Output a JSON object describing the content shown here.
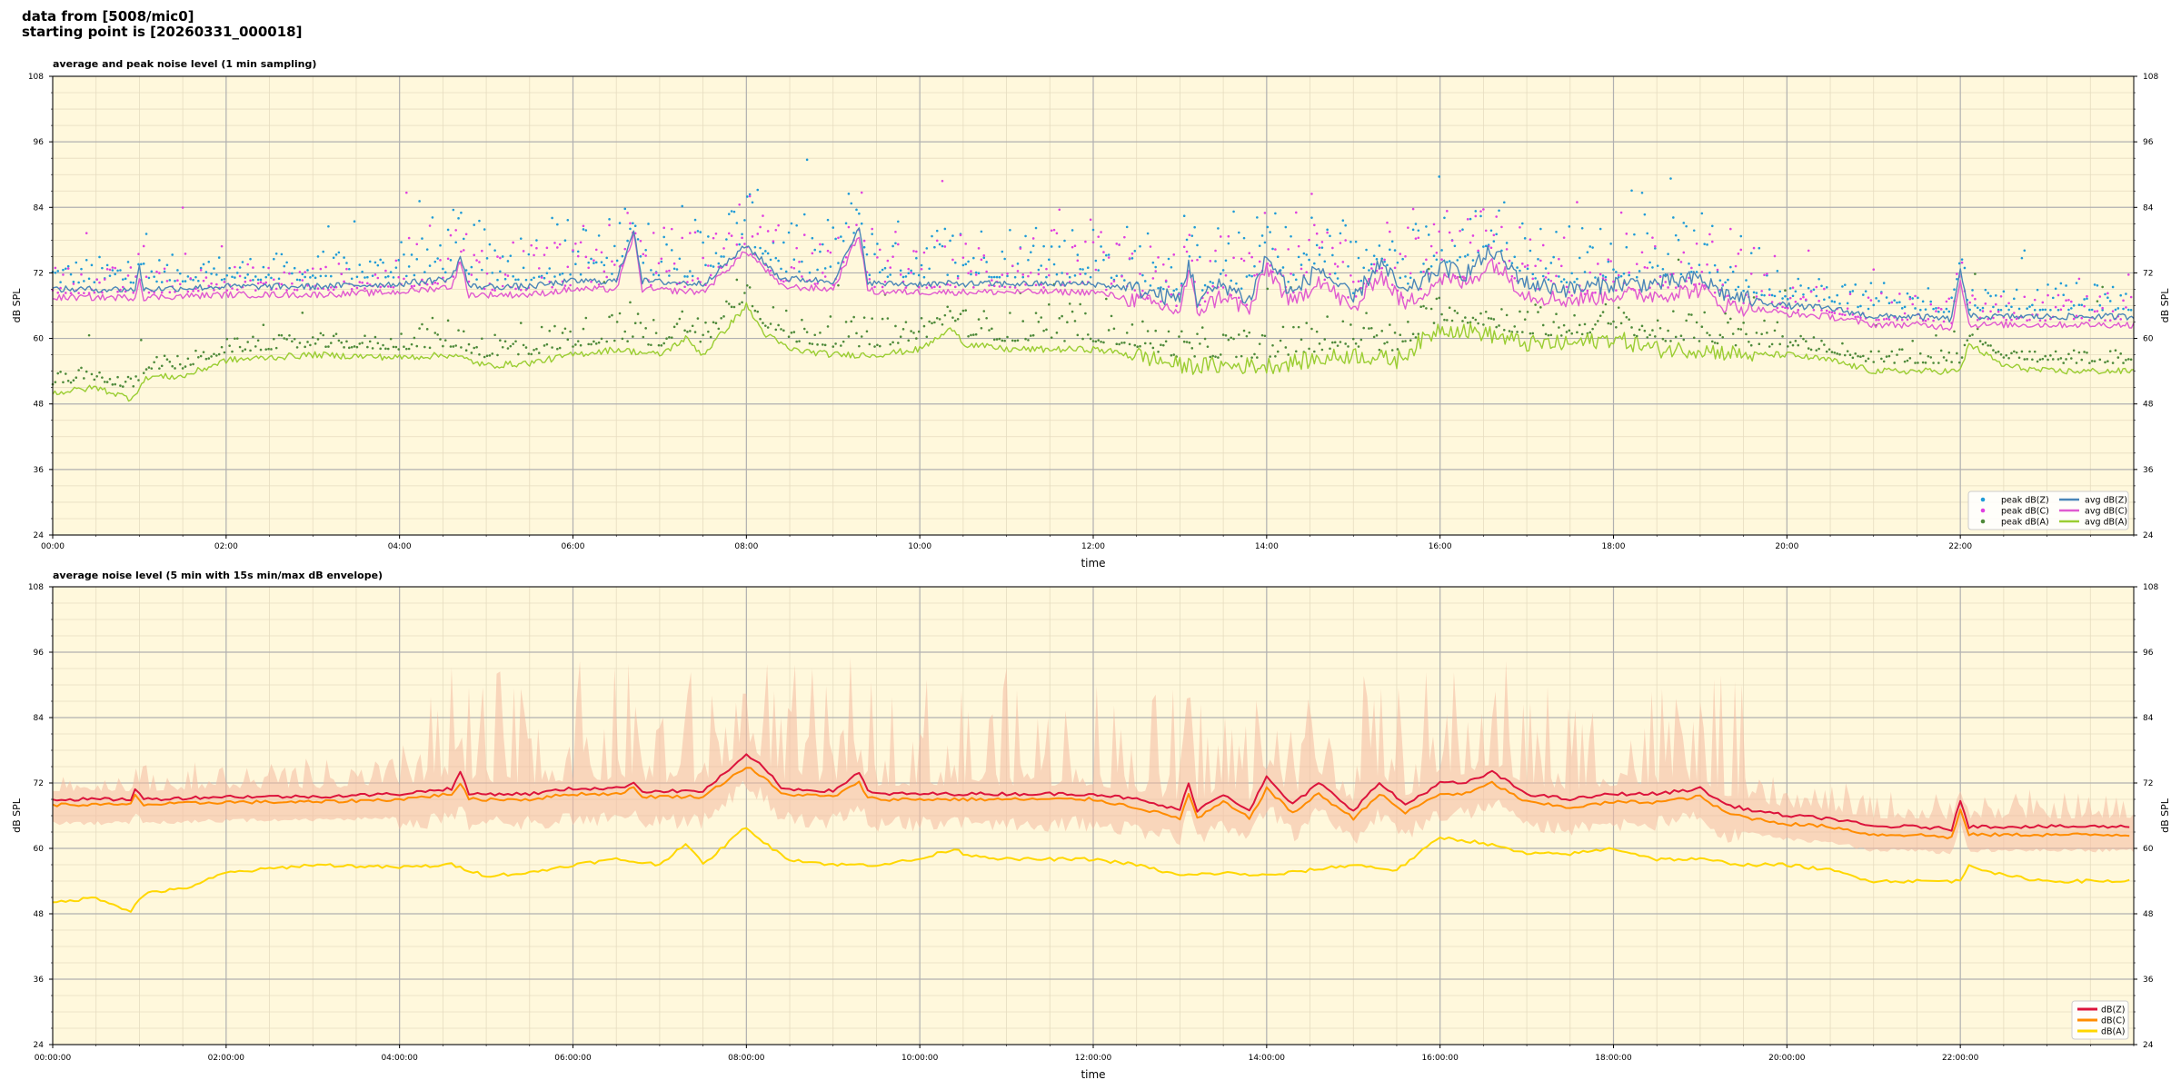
{
  "header": {
    "line1": "data from [5008/mic0]",
    "line2": "starting point is [20260331_000018]"
  },
  "colors": {
    "plot_bg": "#fff8dc",
    "major_grid": "#b0b0b0",
    "minor_grid": "#e6dcc0",
    "peak_z": "#1f9bd7",
    "peak_c": "#e040e0",
    "peak_a": "#4e8a3a",
    "avg_z": "#4a86b8",
    "avg_c": "#e05ad0",
    "avg_a": "#9acd32",
    "lvl_z": "#dc143c",
    "lvl_c": "#ff8c00",
    "lvl_a": "#ffd700",
    "envelope": "#f4b9a0"
  },
  "chart_data": [
    {
      "type": "line",
      "title": "average and peak noise level (1 min sampling)",
      "xlabel": "time",
      "ylabel": "dB SPL",
      "ylim": [
        24,
        108
      ],
      "yticks": [
        "24",
        "36",
        "48",
        "60",
        "72",
        "84",
        "96",
        "108"
      ],
      "xlim_hours": [
        0,
        24
      ],
      "xtick_labels": [
        "00:00",
        "02:00",
        "04:00",
        "06:00",
        "08:00",
        "10:00",
        "12:00",
        "14:00",
        "16:00",
        "18:00",
        "20:00",
        "22:00"
      ],
      "grid": true,
      "legend_position": "lower-right",
      "legend": [
        {
          "label": "peak dB(Z)",
          "kind": "point",
          "color_key": "peak_z"
        },
        {
          "label": "peak dB(C)",
          "kind": "point",
          "color_key": "peak_c"
        },
        {
          "label": "peak dB(A)",
          "kind": "point",
          "color_key": "peak_a"
        },
        {
          "label": "avg dB(Z)",
          "kind": "line",
          "color_key": "avg_z"
        },
        {
          "label": "avg dB(C)",
          "kind": "line",
          "color_key": "avg_c"
        },
        {
          "label": "avg dB(A)",
          "kind": "line",
          "color_key": "avg_a"
        }
      ],
      "series": [
        {
          "name": "avg dB(Z)",
          "kind": "line",
          "color_key": "avg_z",
          "x": [
            0,
            0.95,
            1.0,
            1.05,
            2,
            3,
            4,
            4.6,
            4.7,
            4.8,
            5.5,
            6,
            6.5,
            6.7,
            6.8,
            7.5,
            8.0,
            8.2,
            8.4,
            9,
            9.3,
            9.4,
            9.5,
            10,
            11,
            12,
            12.5,
            13.0,
            13.1,
            13.2,
            13.5,
            13.8,
            14.0,
            14.3,
            14.6,
            15.0,
            15.3,
            15.6,
            16.0,
            16.3,
            16.6,
            17.0,
            17.5,
            18.0,
            18.5,
            19.0,
            19.3,
            19.6,
            20.0,
            20.5,
            21.0,
            21.5,
            21.9,
            22.0,
            22.1,
            22.5,
            23.0,
            23.5,
            24
          ],
          "y": [
            69,
            69,
            73,
            69,
            69.5,
            69.5,
            70,
            71,
            75,
            69.5,
            69.5,
            70.5,
            70.5,
            80,
            70.5,
            70,
            77,
            74,
            71,
            70.5,
            80,
            70.5,
            70,
            70,
            70,
            70,
            69,
            67,
            74,
            67,
            70,
            67,
            75,
            68,
            73,
            67,
            74,
            68,
            73,
            72,
            76,
            70,
            69,
            70,
            70,
            71,
            68,
            67,
            66,
            65.5,
            64,
            64,
            63.5,
            73,
            64,
            64,
            64,
            64,
            64
          ]
        },
        {
          "name": "avg dB(C)",
          "kind": "line",
          "color_key": "avg_c",
          "x": [
            0,
            0.95,
            1.0,
            1.05,
            2,
            3,
            4,
            4.6,
            4.7,
            4.8,
            5.5,
            6,
            6.5,
            6.7,
            6.8,
            7.5,
            8.0,
            8.2,
            8.4,
            9,
            9.3,
            9.4,
            9.5,
            10,
            11,
            12,
            12.5,
            13.0,
            13.1,
            13.2,
            13.5,
            13.8,
            14.0,
            14.3,
            14.6,
            15.0,
            15.3,
            15.6,
            16.0,
            16.3,
            16.6,
            17.0,
            17.5,
            18.0,
            18.5,
            19.0,
            19.3,
            19.6,
            20.0,
            20.5,
            21.0,
            21.5,
            21.9,
            22.0,
            22.1,
            22.5,
            23.0,
            23.5,
            24
          ],
          "y": [
            67.5,
            67.5,
            71,
            67.5,
            68,
            68,
            68.5,
            69.5,
            74,
            68,
            68,
            69,
            69,
            79,
            69,
            68.5,
            76,
            73,
            69.5,
            69,
            79,
            69,
            68.5,
            68.5,
            68.5,
            68.5,
            67,
            65,
            72,
            65,
            68,
            65,
            73,
            66,
            71,
            65,
            72,
            66,
            71,
            70,
            74,
            68,
            67,
            68,
            68,
            69,
            66,
            65.5,
            64.5,
            64,
            62.5,
            62.5,
            62,
            71,
            62.5,
            62.5,
            62.5,
            62.5,
            62.5
          ]
        },
        {
          "name": "avg dB(A)",
          "kind": "line",
          "color_key": "avg_a",
          "x": [
            0,
            0.5,
            0.9,
            1.0,
            1.1,
            1.5,
            2,
            3,
            4,
            4.6,
            5,
            5.5,
            6,
            6.5,
            7,
            7.3,
            7.5,
            8.0,
            8.2,
            8.5,
            9,
            9.5,
            10,
            10.4,
            10.5,
            11,
            12,
            12.5,
            13,
            13.5,
            14,
            14.5,
            15,
            15.5,
            16,
            16.5,
            17,
            17.5,
            18,
            18.5,
            19,
            19.5,
            20,
            20.5,
            21,
            21.5,
            22,
            22.1,
            22.5,
            23,
            23.5,
            24
          ],
          "y": [
            50,
            51,
            49,
            51,
            53,
            53,
            56,
            57,
            56.5,
            57,
            55,
            55.5,
            57,
            58,
            57,
            60,
            57,
            66,
            61,
            58,
            57,
            57,
            58,
            62,
            59,
            58,
            58,
            57,
            55,
            55,
            55,
            56,
            57,
            56,
            62,
            61,
            59,
            59,
            60,
            58,
            58,
            57,
            57,
            56,
            54,
            54,
            54,
            59,
            55,
            54,
            54,
            54
          ]
        }
      ]
    },
    {
      "type": "line",
      "title": "average noise level (5 min with 15s min/max dB envelope)",
      "xlabel": "time",
      "ylabel": "dB SPL",
      "ylim": [
        24,
        108
      ],
      "yticks": [
        "24",
        "36",
        "48",
        "60",
        "72",
        "84",
        "96",
        "108"
      ],
      "xlim_hours": [
        0,
        24
      ],
      "xtick_labels": [
        "00:00:00",
        "02:00:00",
        "04:00:00",
        "06:00:00",
        "08:00:00",
        "10:00:00",
        "12:00:00",
        "14:00:00",
        "16:00:00",
        "18:00:00",
        "20:00:00",
        "22:00:00"
      ],
      "grid": true,
      "legend_position": "lower-right",
      "legend": [
        {
          "label": "dB(Z)",
          "kind": "line",
          "color_key": "lvl_z"
        },
        {
          "label": "dB(C)",
          "kind": "line",
          "color_key": "lvl_c"
        },
        {
          "label": "dB(A)",
          "kind": "line",
          "color_key": "lvl_a"
        }
      ],
      "series": [
        {
          "name": "dB(Z)",
          "kind": "line",
          "color_key": "lvl_z",
          "x": [
            0,
            0.9,
            0.95,
            1.05,
            2,
            3,
            4,
            4.6,
            4.7,
            4.8,
            5.5,
            6,
            6.5,
            6.7,
            6.8,
            7.5,
            8.0,
            8.2,
            8.4,
            9,
            9.3,
            9.4,
            9.5,
            10,
            11,
            12,
            12.5,
            13.0,
            13.1,
            13.2,
            13.5,
            13.8,
            14.0,
            14.3,
            14.6,
            15.0,
            15.3,
            15.6,
            16.0,
            16.3,
            16.6,
            17.0,
            17.5,
            18.0,
            18.5,
            19.0,
            19.3,
            19.6,
            20.0,
            20.5,
            21.0,
            21.5,
            21.9,
            22.0,
            22.1,
            22.5,
            23.0,
            23.5,
            24
          ],
          "y": [
            69,
            69,
            71,
            69,
            69.5,
            69.5,
            70,
            71,
            74,
            70,
            70,
            71,
            71,
            72,
            70.5,
            70.5,
            77,
            75,
            71,
            70.5,
            74,
            70.5,
            70,
            70,
            70,
            70,
            69,
            67,
            72,
            67,
            70,
            67,
            73,
            68,
            72,
            67,
            72,
            68,
            72,
            72,
            74,
            70,
            69,
            70,
            70,
            71,
            68,
            67,
            66,
            65.5,
            64,
            64,
            63.5,
            69,
            64,
            64,
            64,
            64,
            64
          ]
        },
        {
          "name": "dB(C)",
          "kind": "line",
          "color_key": "lvl_c",
          "x": [
            0,
            0.9,
            0.95,
            1.05,
            2,
            3,
            4,
            4.6,
            4.7,
            4.8,
            5.5,
            6,
            6.5,
            6.7,
            6.8,
            7.5,
            8.0,
            8.2,
            8.4,
            9,
            9.3,
            9.4,
            9.5,
            10,
            11,
            12,
            12.5,
            13.0,
            13.1,
            13.2,
            13.5,
            13.8,
            14.0,
            14.3,
            14.6,
            15.0,
            15.3,
            15.6,
            16.0,
            16.3,
            16.6,
            17.0,
            17.5,
            18.0,
            18.5,
            19.0,
            19.3,
            19.6,
            20.0,
            20.5,
            21.0,
            21.5,
            21.9,
            22.0,
            22.1,
            22.5,
            23.0,
            23.5,
            24
          ],
          "y": [
            68,
            68,
            70,
            68,
            68.5,
            68.5,
            69,
            70,
            72,
            69,
            69,
            70,
            70,
            71,
            69.5,
            69.5,
            75,
            73,
            70,
            69.5,
            72,
            69.5,
            69,
            69,
            69,
            69,
            67.5,
            65.5,
            70,
            65.5,
            68.5,
            65.5,
            71,
            66.5,
            70,
            65.5,
            70,
            66.5,
            70,
            70,
            72,
            68.5,
            67.5,
            68.5,
            68.5,
            69.5,
            66.5,
            65.5,
            64.5,
            64,
            62.5,
            62.5,
            62,
            67,
            62.5,
            62.5,
            62.5,
            62.5,
            62.5
          ]
        },
        {
          "name": "dB(A)",
          "kind": "line",
          "color_key": "lvl_a",
          "x": [
            0,
            0.5,
            0.9,
            1.0,
            1.1,
            1.5,
            2,
            3,
            4,
            4.6,
            5,
            5.5,
            6,
            6.5,
            7,
            7.3,
            7.5,
            8.0,
            8.2,
            8.5,
            9,
            9.5,
            10,
            10.4,
            10.5,
            11,
            12,
            12.5,
            13,
            13.5,
            14,
            14.5,
            15,
            15.5,
            16,
            16.5,
            17,
            17.5,
            18,
            18.5,
            19,
            19.5,
            20,
            20.5,
            21,
            21.5,
            22,
            22.1,
            22.5,
            23,
            23.5,
            24
          ],
          "y": [
            50,
            51,
            48.5,
            50.5,
            52,
            52.5,
            55.5,
            57,
            56.5,
            57,
            55,
            55.5,
            57,
            58,
            57,
            61,
            57,
            64,
            61,
            58,
            57,
            57,
            58,
            60,
            59,
            58,
            58,
            57,
            55,
            55.5,
            55,
            56,
            57,
            56,
            62,
            61,
            59,
            59,
            60,
            58,
            58,
            57,
            57,
            56,
            54,
            54,
            54,
            57,
            55,
            54,
            54,
            54
          ]
        }
      ]
    }
  ]
}
